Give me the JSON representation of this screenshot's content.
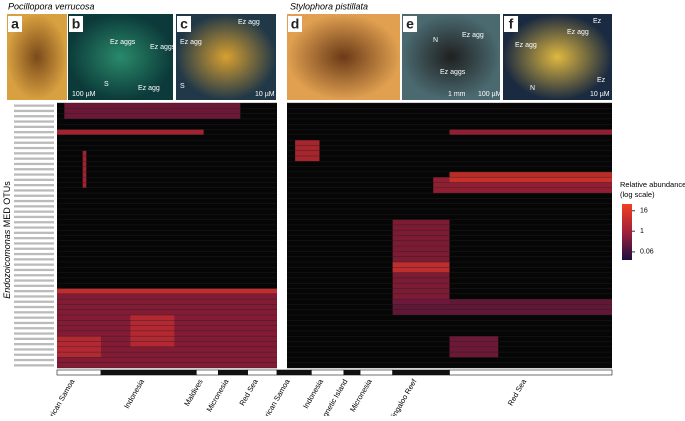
{
  "species": [
    "Pocillopora verrucosa",
    "Stylophora pistillata"
  ],
  "panels": [
    {
      "letter": "a",
      "notes": []
    },
    {
      "letter": "b",
      "notes": [
        "Ez aggs",
        "Ez aggs",
        "Ez agg",
        "S",
        "100 µM"
      ]
    },
    {
      "letter": "c",
      "notes": [
        "Ez agg",
        "Ez agg",
        "S",
        "10 µM"
      ]
    },
    {
      "letter": "d",
      "notes": []
    },
    {
      "letter": "e",
      "notes": [
        "N",
        "Ez agg",
        "Ez aggs",
        "1 mm",
        "100 µM"
      ]
    },
    {
      "letter": "f",
      "notes": [
        "Ez agg",
        "Ez agg",
        "Ez",
        "N",
        "Ez",
        "10 µM"
      ]
    }
  ],
  "chart_data": {
    "type": "heatmap",
    "y_label_italic": "Endozoicomonas",
    "y_label": "MED OTUs",
    "legend_title": [
      "Relative abundance",
      "(log scale)"
    ],
    "colorbar_lim": [
      0.02,
      40
    ],
    "colorbar_ticks": [
      16,
      1,
      0.06
    ],
    "rows": 50,
    "columns": 140,
    "regions": [
      {
        "label": "American Samoa",
        "cols": [
          0,
          12
        ]
      },
      {
        "label": "Indonesia",
        "cols": [
          12,
          38
        ]
      },
      {
        "label": "Maldives",
        "cols": [
          38,
          44
        ]
      },
      {
        "label": "Micronesia",
        "cols": [
          44,
          52
        ]
      },
      {
        "label": "Red Sea",
        "cols": [
          52,
          60
        ]
      },
      {
        "label": "American Samoa",
        "cols": [
          60,
          66
        ]
      },
      {
        "label": "Indonesia",
        "cols": [
          66,
          74
        ]
      },
      {
        "label": "Magnetic Island",
        "cols": [
          74,
          78
        ]
      },
      {
        "label": "Micronesia",
        "cols": [
          78,
          86
        ]
      },
      {
        "label": "Ningaloo Reef",
        "cols": [
          86,
          100
        ]
      },
      {
        "label": "Red Sea",
        "cols": [
          100,
          140
        ]
      }
    ],
    "blocks": [
      {
        "rows": [
          0,
          3
        ],
        "cols": [
          2,
          50
        ],
        "value": 0.3
      },
      {
        "rows": [
          5,
          6
        ],
        "cols": [
          0,
          40
        ],
        "value": 2
      },
      {
        "rows": [
          9,
          16
        ],
        "cols": [
          7,
          8
        ],
        "value": 2
      },
      {
        "rows": [
          5,
          6
        ],
        "cols": [
          100,
          140
        ],
        "value": 1
      },
      {
        "rows": [
          7,
          11
        ],
        "cols": [
          62,
          68
        ],
        "value": 3
      },
      {
        "rows": [
          14,
          17
        ],
        "cols": [
          96,
          140
        ],
        "value": 1
      },
      {
        "rows": [
          13,
          15
        ],
        "cols": [
          100,
          140
        ],
        "value": 8
      },
      {
        "rows": [
          22,
          38
        ],
        "cols": [
          86,
          100
        ],
        "value": 0.5
      },
      {
        "rows": [
          30,
          32
        ],
        "cols": [
          86,
          100
        ],
        "value": 6
      },
      {
        "rows": [
          37,
          40
        ],
        "cols": [
          86,
          140
        ],
        "value": 0.2
      },
      {
        "rows": [
          35,
          50
        ],
        "cols": [
          0,
          60
        ],
        "value": 0.6
      },
      {
        "rows": [
          35,
          36
        ],
        "cols": [
          0,
          60
        ],
        "value": 6
      },
      {
        "rows": [
          44,
          48
        ],
        "cols": [
          0,
          12
        ],
        "value": 3
      },
      {
        "rows": [
          40,
          46
        ],
        "cols": [
          20,
          32
        ],
        "value": 3
      },
      {
        "rows": [
          44,
          48
        ],
        "cols": [
          100,
          112
        ],
        "value": 0.3
      }
    ]
  }
}
